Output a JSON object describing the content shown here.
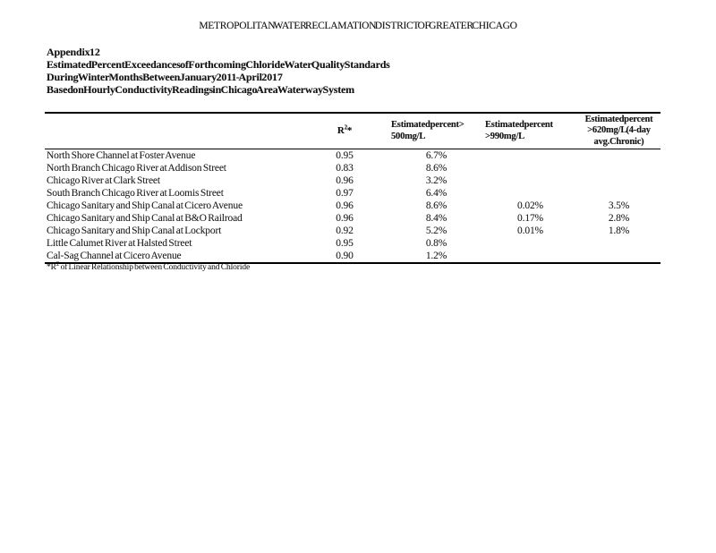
{
  "page": {
    "header": "METROPOLITAN WATER RECLAMATION DISTRICT OF GREATER CHICAGO"
  },
  "title": {
    "line1": "Appendix 12",
    "line2": "Estimated Percent Exceedances of Forthcoming Chloride Water Quality Standards",
    "line3": "During Winter Months Between January 2011 - April 2017",
    "line4": "Based on Hourly Conductivity Readings in Chicago Area Waterway System"
  },
  "table": {
    "header": {
      "r2_base": "R",
      "r2_sup": "2",
      "r2_star": "*",
      "col500_line1": "Estimated percent >",
      "col500_line2": "500 mg/L",
      "col990_line1": "Estimated percent",
      "col990_line2": ">990 mg/L",
      "col620_line1": "Estimated percent",
      "col620_line2": ">620 mg/L (4-day",
      "col620_line3": "avg. Chronic)"
    },
    "rows": [
      {
        "name": "North Shore Channel at Foster Avenue",
        "r2": "0.95",
        "p500": "6.7%",
        "p990": "",
        "p620": ""
      },
      {
        "name": "North Branch Chicago River at Addison Street",
        "r2": "0.83",
        "p500": "8.6%",
        "p990": "",
        "p620": ""
      },
      {
        "name": "Chicago River at Clark Street",
        "r2": "0.96",
        "p500": "3.2%",
        "p990": "",
        "p620": ""
      },
      {
        "name": "South Branch Chicago River at Loomis Street",
        "r2": "0.97",
        "p500": "6.4%",
        "p990": "",
        "p620": ""
      },
      {
        "name": "Chicago Sanitary and Ship Canal at Cicero Avenue",
        "r2": "0.96",
        "p500": "8.6%",
        "p990": "0.02%",
        "p620": "3.5%"
      },
      {
        "name": "Chicago Sanitary and Ship Canal at B&O Railroad",
        "r2": "0.96",
        "p500": "8.4%",
        "p990": "0.17%",
        "p620": "2.8%"
      },
      {
        "name": "Chicago Sanitary and Ship Canal at Lockport",
        "r2": "0.92",
        "p500": "5.2%",
        "p990": "0.01%",
        "p620": "1.8%"
      },
      {
        "name": "Little Calumet River at Halsted Street",
        "r2": "0.95",
        "p500": "0.8%",
        "p990": "",
        "p620": ""
      },
      {
        "name": "Cal-Sag Channel at Cicero Avenue",
        "r2": "0.90",
        "p500": "1.2%",
        "p990": "",
        "p620": ""
      }
    ],
    "footnote": {
      "prefix": "*R",
      "sup": "2",
      "text": " of Linear Relationship between Conductivity and Chloride"
    }
  }
}
